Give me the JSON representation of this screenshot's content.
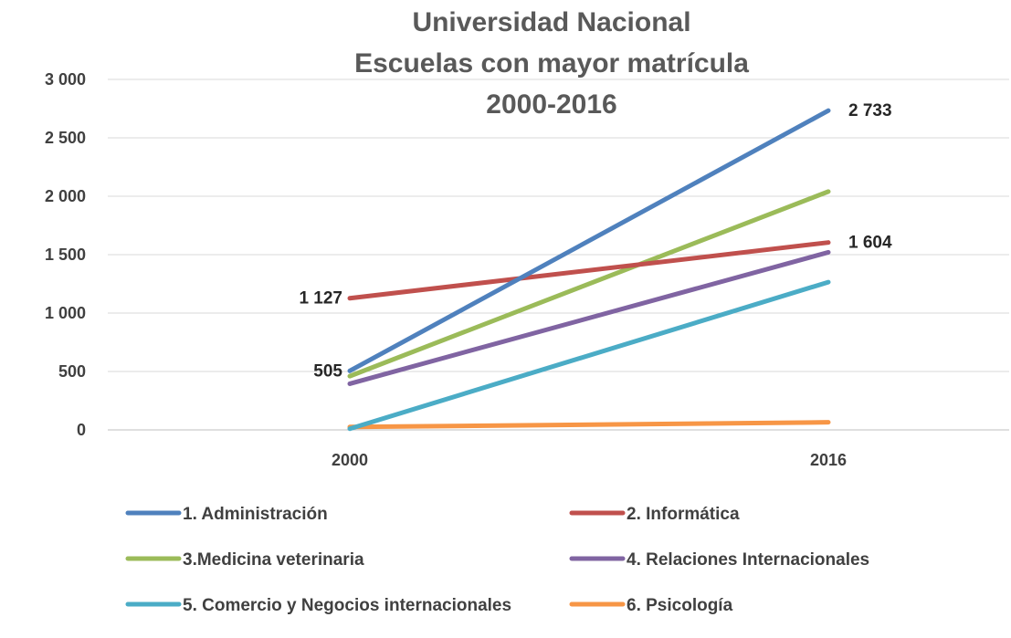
{
  "chart_data": {
    "type": "line",
    "title_lines": [
      "Universidad Nacional",
      "Escuelas con mayor matrícula",
      "2000-2016"
    ],
    "categories": [
      "2000",
      "2016"
    ],
    "ylim": [
      0,
      3000
    ],
    "y_ticks": [
      {
        "value": 0,
        "label": "0"
      },
      {
        "value": 500,
        "label": "500"
      },
      {
        "value": 1000,
        "label": "1 000"
      },
      {
        "value": 1500,
        "label": "1 500"
      },
      {
        "value": 2000,
        "label": "2 000"
      },
      {
        "value": 2500,
        "label": "2 500"
      },
      {
        "value": 3000,
        "label": "3 000"
      }
    ],
    "grid": true,
    "legend_position": "bottom",
    "series": [
      {
        "name": "1. Administración",
        "color": "#4F81BD",
        "values": [
          505,
          2733
        ]
      },
      {
        "name": "2. Informática",
        "color": "#C0504D",
        "values": [
          1127,
          1604
        ]
      },
      {
        "name": "3.Medicina veterinaria",
        "color": "#9BBB59",
        "values": [
          460,
          2040
        ]
      },
      {
        "name": "4. Relaciones Internacionales",
        "color": "#8064A2",
        "values": [
          395,
          1520
        ]
      },
      {
        "name": "5. Comercio y Negocios internacionales",
        "color": "#4BACC6",
        "values": [
          10,
          1265
        ]
      },
      {
        "name": "6. Psicología",
        "color": "#F79646",
        "values": [
          25,
          65
        ]
      }
    ],
    "data_labels": [
      {
        "series": 0,
        "point": 0,
        "text": "505",
        "side": "left"
      },
      {
        "series": 0,
        "point": 1,
        "text": "2 733",
        "side": "right"
      },
      {
        "series": 1,
        "point": 0,
        "text": "1 127",
        "side": "left"
      },
      {
        "series": 1,
        "point": 1,
        "text": "1 604",
        "side": "right"
      }
    ]
  }
}
